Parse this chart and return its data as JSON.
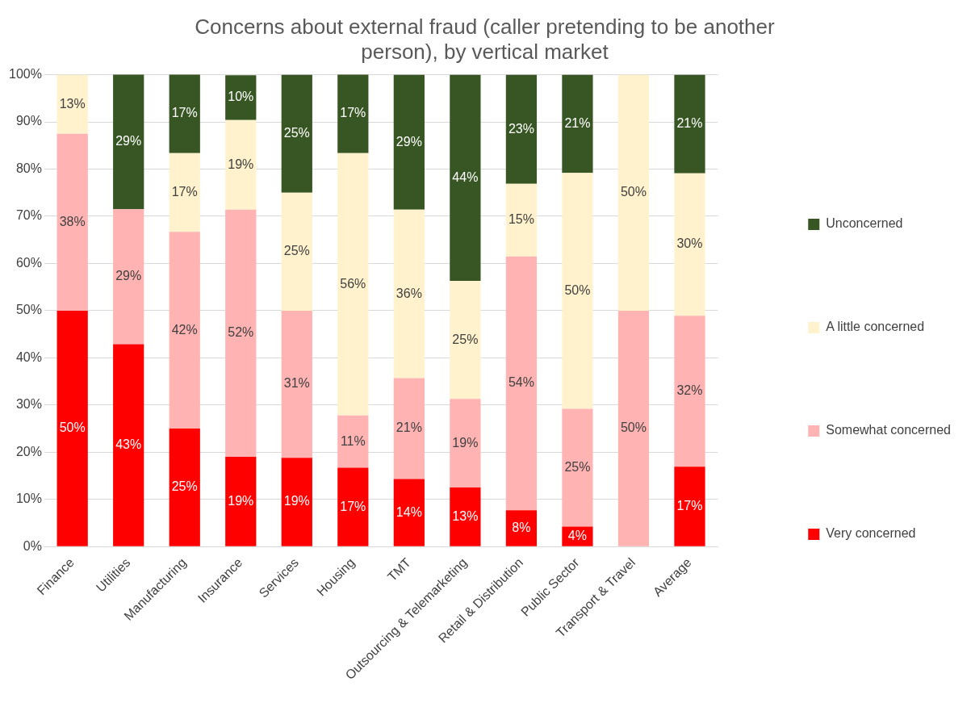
{
  "chart_data": {
    "type": "bar",
    "title": "Concerns about external fraud (caller pretending to be another person), by vertical market",
    "categories": [
      "Finance",
      "Utilities",
      "Manufacturing",
      "Insurance",
      "Services",
      "Housing",
      "TMT",
      "Outsourcing & Telemarketing",
      "Retail & Distribution",
      "Public Sector",
      "Transport & Travel",
      "Average"
    ],
    "stacked": true,
    "ylim": [
      0,
      100
    ],
    "yticks": [
      {
        "value": 0,
        "label": "0%"
      },
      {
        "value": 10,
        "label": "10%"
      },
      {
        "value": 20,
        "label": "20%"
      },
      {
        "value": 30,
        "label": "30%"
      },
      {
        "value": 40,
        "label": "40%"
      },
      {
        "value": 50,
        "label": "50%"
      },
      {
        "value": 60,
        "label": "60%"
      },
      {
        "value": 70,
        "label": "70%"
      },
      {
        "value": 80,
        "label": "80%"
      },
      {
        "value": 90,
        "label": "90%"
      },
      {
        "value": 100,
        "label": "100%"
      }
    ],
    "grid": "y",
    "legend": "right",
    "series": [
      {
        "name": "Very concerned",
        "color": "#ff0000",
        "values": [
          50,
          42.9,
          25,
          19,
          18.8,
          16.7,
          14.3,
          12.5,
          7.7,
          4.2,
          0,
          16.9
        ],
        "value_labels": [
          "50%",
          "43%",
          "25%",
          "19%",
          "19%",
          "17%",
          "14%",
          "13%",
          "8%",
          "4%",
          null,
          "17%"
        ]
      },
      {
        "name": "Somewhat concerned",
        "color": "#ffb3b3",
        "values": [
          37.5,
          28.6,
          41.7,
          52.4,
          31.2,
          11.1,
          21.4,
          18.8,
          53.8,
          25,
          50,
          32
        ],
        "value_labels": [
          "38%",
          "29%",
          "42%",
          "52%",
          "31%",
          "11%",
          "21%",
          "19%",
          "54%",
          "25%",
          "50%",
          "32%"
        ]
      },
      {
        "name": "A little concerned",
        "color": "#fff2cc",
        "values": [
          12.5,
          0,
          16.7,
          19,
          25,
          55.6,
          35.7,
          25,
          15.4,
          50,
          50,
          30.2
        ],
        "value_labels": [
          "13%",
          null,
          "17%",
          "19%",
          "25%",
          "56%",
          "36%",
          "25%",
          "15%",
          "50%",
          "50%",
          "30%"
        ]
      },
      {
        "name": "Unconcerned",
        "color": "#375623",
        "values": [
          0,
          28.6,
          16.7,
          9.5,
          25,
          16.7,
          28.6,
          43.7,
          23.1,
          20.8,
          0,
          20.9
        ],
        "value_labels": [
          null,
          "29%",
          "17%",
          "10%",
          "25%",
          "17%",
          "29%",
          "44%",
          "23%",
          "21%",
          null,
          "21%"
        ]
      }
    ]
  }
}
